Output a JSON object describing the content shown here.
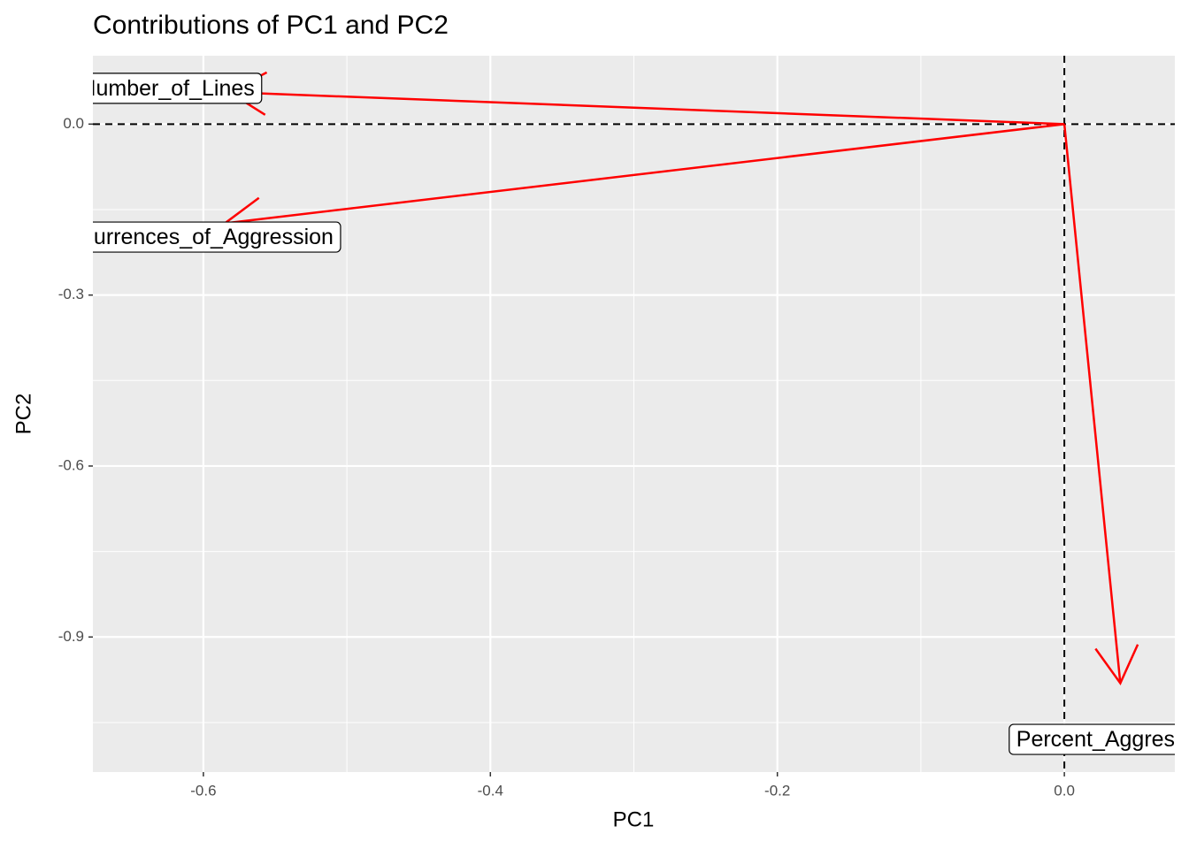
{
  "chart_data": {
    "type": "vectors",
    "title": "Contributions of PC1 and PC2",
    "x_label": "PC1",
    "y_label": "PC2",
    "categories": [
      "Number_of_Lines",
      "Occurrences_of_Aggression",
      "Percent_Aggression"
    ],
    "x": [
      -0.582,
      -0.585,
      0.039
    ],
    "values": [
      0.056,
      -0.174,
      -0.981
    ],
    "color": "#ff0000",
    "xlim": [
      -0.677,
      0.077
    ],
    "ylim": [
      -1.137,
      0.12
    ],
    "xticks": [
      -0.6,
      -0.4,
      -0.2,
      {
        "value": 0,
        "label": "0.0"
      }
    ],
    "yticks": [
      {
        "value": 0,
        "label": "0.0"
      },
      -0.3,
      -0.6,
      -0.9
    ],
    "grid": true
  }
}
